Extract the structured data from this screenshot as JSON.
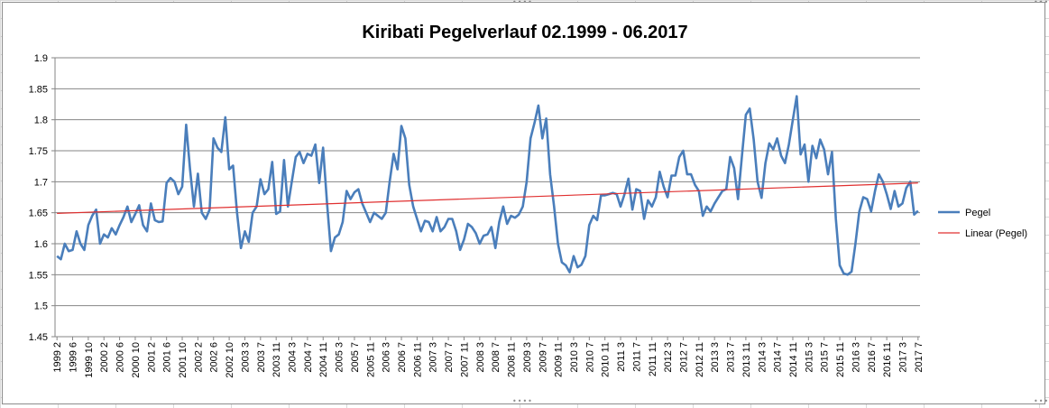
{
  "chart_data": {
    "type": "line",
    "title": "Kiribati Pegelverlauf  02.1999 - 06.2017",
    "xlabel": "",
    "ylabel": "",
    "ylim": [
      1.45,
      1.9
    ],
    "yticks": [
      "1.45",
      "1.5",
      "1.55",
      "1.6",
      "1.65",
      "1.7",
      "1.75",
      "1.8",
      "1.85",
      "1.9"
    ],
    "grid": "horizontal",
    "legend_position": "right",
    "x_tick_labels": [
      "1999 2",
      "1999 6",
      "1999 10",
      "2000 2",
      "2000 6",
      "2000 10",
      "2001 2",
      "2001 6",
      "2001 10",
      "2002 2",
      "2002 6",
      "2002 10",
      "2003 3",
      "2003 7",
      "2003 11",
      "2004 3",
      "2004 7",
      "2004 11",
      "2005 3",
      "2005 7",
      "2005 11",
      "2006 3",
      "2006 7",
      "2006 11",
      "2007 3",
      "2007 7",
      "2007 11",
      "2008 3",
      "2008 7",
      "2008 11",
      "2009 3",
      "2009 7",
      "2009 11",
      "2010 3",
      "2010 7",
      "2010 11",
      "2011 3",
      "2011 7",
      "2011 11",
      "2012 3",
      "2012 7",
      "2012 11",
      "2013 3",
      "2013 7",
      "2013 11",
      "2014 3",
      "2014 7",
      "2014 11",
      "2015 3",
      "2015 7",
      "2015 11",
      "2016 3",
      "2016 7",
      "2016 11",
      "2017 3",
      "2017 7"
    ],
    "series": [
      {
        "name": "Pegel",
        "color": "#4a7ebb",
        "values": [
          1.58,
          1.575,
          1.6,
          1.588,
          1.59,
          1.62,
          1.6,
          1.59,
          1.63,
          1.645,
          1.655,
          1.6,
          1.615,
          1.61,
          1.625,
          1.615,
          1.63,
          1.643,
          1.66,
          1.635,
          1.648,
          1.662,
          1.63,
          1.62,
          1.665,
          1.638,
          1.635,
          1.636,
          1.698,
          1.706,
          1.7,
          1.68,
          1.692,
          1.792,
          1.72,
          1.66,
          1.713,
          1.65,
          1.64,
          1.655,
          1.77,
          1.755,
          1.748,
          1.804,
          1.72,
          1.726,
          1.65,
          1.593,
          1.62,
          1.603,
          1.65,
          1.66,
          1.704,
          1.68,
          1.688,
          1.732,
          1.648,
          1.652,
          1.735,
          1.66,
          1.7,
          1.74,
          1.748,
          1.73,
          1.745,
          1.742,
          1.76,
          1.698,
          1.755,
          1.665,
          1.588,
          1.61,
          1.615,
          1.635,
          1.685,
          1.672,
          1.683,
          1.688,
          1.665,
          1.65,
          1.635,
          1.65,
          1.645,
          1.64,
          1.65,
          1.7,
          1.745,
          1.72,
          1.79,
          1.77,
          1.695,
          1.66,
          1.64,
          1.62,
          1.637,
          1.635,
          1.62,
          1.643,
          1.62,
          1.627,
          1.64,
          1.64,
          1.62,
          1.59,
          1.607,
          1.632,
          1.627,
          1.617,
          1.6,
          1.613,
          1.615,
          1.627,
          1.593,
          1.635,
          1.66,
          1.632,
          1.645,
          1.642,
          1.647,
          1.66,
          1.7,
          1.77,
          1.795,
          1.823,
          1.77,
          1.802,
          1.712,
          1.66,
          1.6,
          1.57,
          1.565,
          1.554,
          1.58,
          1.562,
          1.566,
          1.58,
          1.63,
          1.645,
          1.638,
          1.678,
          1.678,
          1.68,
          1.682,
          1.68,
          1.66,
          1.68,
          1.705,
          1.655,
          1.688,
          1.685,
          1.64,
          1.67,
          1.66,
          1.675,
          1.716,
          1.692,
          1.675,
          1.71,
          1.71,
          1.74,
          1.75,
          1.712,
          1.712,
          1.695,
          1.685,
          1.645,
          1.66,
          1.652,
          1.665,
          1.675,
          1.685,
          1.688,
          1.74,
          1.722,
          1.672,
          1.742,
          1.808,
          1.818,
          1.768,
          1.7,
          1.674,
          1.73,
          1.762,
          1.752,
          1.77,
          1.742,
          1.73,
          1.76,
          1.8,
          1.838,
          1.744,
          1.76,
          1.7,
          1.758,
          1.738,
          1.768,
          1.752,
          1.712,
          1.748,
          1.64,
          1.565,
          1.552,
          1.55,
          1.555,
          1.6,
          1.652,
          1.675,
          1.672,
          1.652,
          1.685,
          1.712,
          1.7,
          1.68,
          1.656,
          1.685,
          1.66,
          1.665,
          1.69,
          1.7,
          1.647,
          1.653
        ]
      },
      {
        "name": "Linear (Pegel)",
        "color": "#e03030",
        "values": [
          1.649,
          1.698
        ]
      }
    ]
  }
}
